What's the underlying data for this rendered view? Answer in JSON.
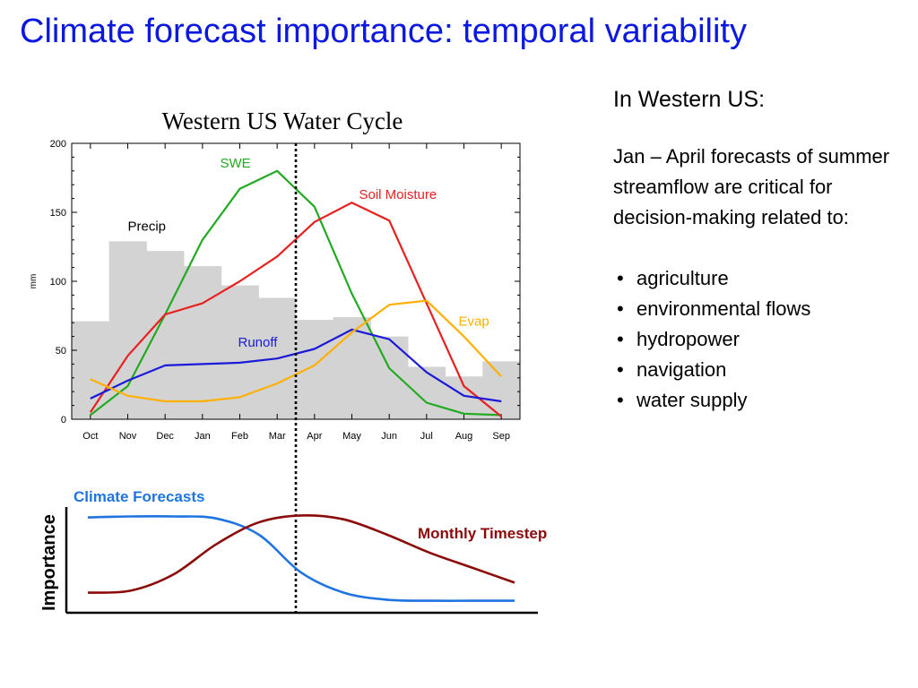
{
  "slide": {
    "title": "Climate forecast importance:  temporal variability"
  },
  "right_panel": {
    "heading": "In Western US:",
    "paragraph": "Jan – April forecasts of summer streamflow are critical for decision-making related to:",
    "bullets": [
      "agriculture",
      "environmental flows",
      "hydropower",
      "navigation",
      "water supply"
    ]
  },
  "colors": {
    "title": "#0b18e0",
    "precip": "#d3d3d3",
    "swe": "#22aa22",
    "soil_moisture": "#e82020",
    "runoff": "#1a1ad8",
    "evap": "#ffb000",
    "climate_forecasts": "#1f74e0",
    "monthly_timestep": "#8b0a0a"
  },
  "chart_data": [
    {
      "type": "line",
      "title": "Western US Water Cycle",
      "ylabel": "mm",
      "xlabel": "",
      "ylim": [
        0,
        200
      ],
      "yticks": [
        0,
        50,
        100,
        150,
        200
      ],
      "categories": [
        "Oct",
        "Nov",
        "Dec",
        "Jan",
        "Feb",
        "Mar",
        "Apr",
        "May",
        "Jun",
        "Jul",
        "Aug",
        "Sep"
      ],
      "bars": {
        "name": "Precip",
        "type": "bar",
        "values": [
          71,
          129,
          122,
          111,
          97,
          88,
          72,
          74,
          60,
          38,
          31,
          42
        ]
      },
      "series": [
        {
          "name": "SWE",
          "values": [
            3,
            24,
            76,
            130,
            167,
            180,
            154,
            91,
            37,
            12,
            4,
            3
          ]
        },
        {
          "name": "Soil Moisture",
          "values": [
            5,
            46,
            76,
            84,
            100,
            118,
            143,
            157,
            144,
            84,
            24,
            2
          ]
        },
        {
          "name": "Runoff",
          "values": [
            15,
            28,
            39,
            40,
            41,
            44,
            51,
            65,
            58,
            34,
            17,
            13
          ]
        },
        {
          "name": "Evap",
          "values": [
            29,
            17,
            13,
            13,
            16,
            26,
            39,
            63,
            83,
            86,
            60,
            31
          ]
        }
      ],
      "marker": {
        "position": "between Mar and Apr",
        "style": "dotted"
      }
    },
    {
      "type": "line",
      "title": "",
      "ylabel": "Importance",
      "xlabel": "",
      "note": "schematic curves, no axis scale shown",
      "series": [
        {
          "name": "Climate Forecasts",
          "values": [
            0.95,
            0.96,
            0.96,
            0.94,
            0.78,
            0.4,
            0.2,
            0.13,
            0.12,
            0.12,
            0.12
          ]
        },
        {
          "name": "Monthly Timestep",
          "values": [
            0.2,
            0.22,
            0.38,
            0.68,
            0.9,
            0.97,
            0.93,
            0.78,
            0.6,
            0.45,
            0.3
          ]
        }
      ]
    }
  ]
}
